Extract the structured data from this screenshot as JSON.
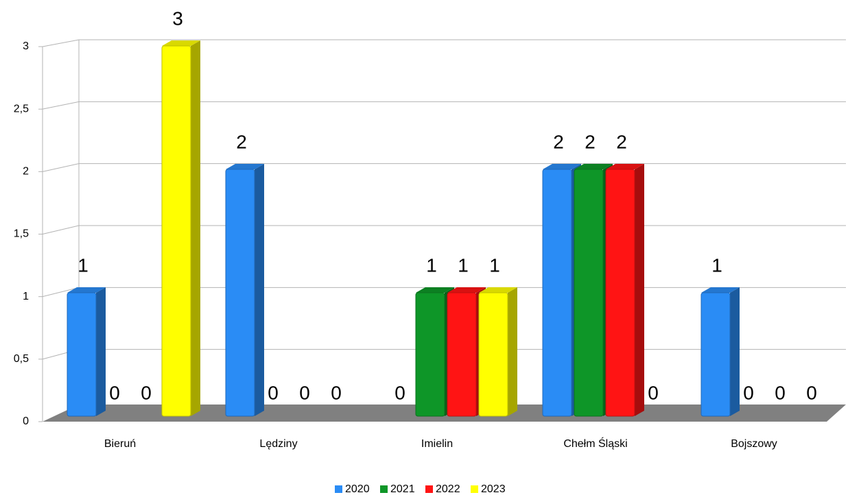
{
  "chart_data": {
    "type": "bar",
    "categories": [
      "Bieruń",
      "Lędziny",
      "Imielin",
      "Chełm Śląski",
      "Bojszowy"
    ],
    "series": [
      {
        "name": "2020",
        "color": "#2a8cf5",
        "values": [
          1,
          2,
          0,
          2,
          1
        ]
      },
      {
        "name": "2021",
        "color": "#0e9628",
        "values": [
          0,
          0,
          1,
          2,
          0
        ]
      },
      {
        "name": "2022",
        "color": "#ff1414",
        "values": [
          0,
          0,
          1,
          2,
          0
        ]
      },
      {
        "name": "2023",
        "color": "#ffff00",
        "values": [
          3,
          0,
          1,
          0,
          0
        ]
      }
    ],
    "ylim": [
      0,
      3
    ],
    "yticks": [
      0,
      {
        "value": 0.5,
        "label": "0,5"
      },
      1,
      {
        "value": 1.5,
        "label": "1,5"
      },
      2,
      {
        "value": 2.5,
        "label": "2,5"
      },
      3
    ],
    "grid": true
  }
}
